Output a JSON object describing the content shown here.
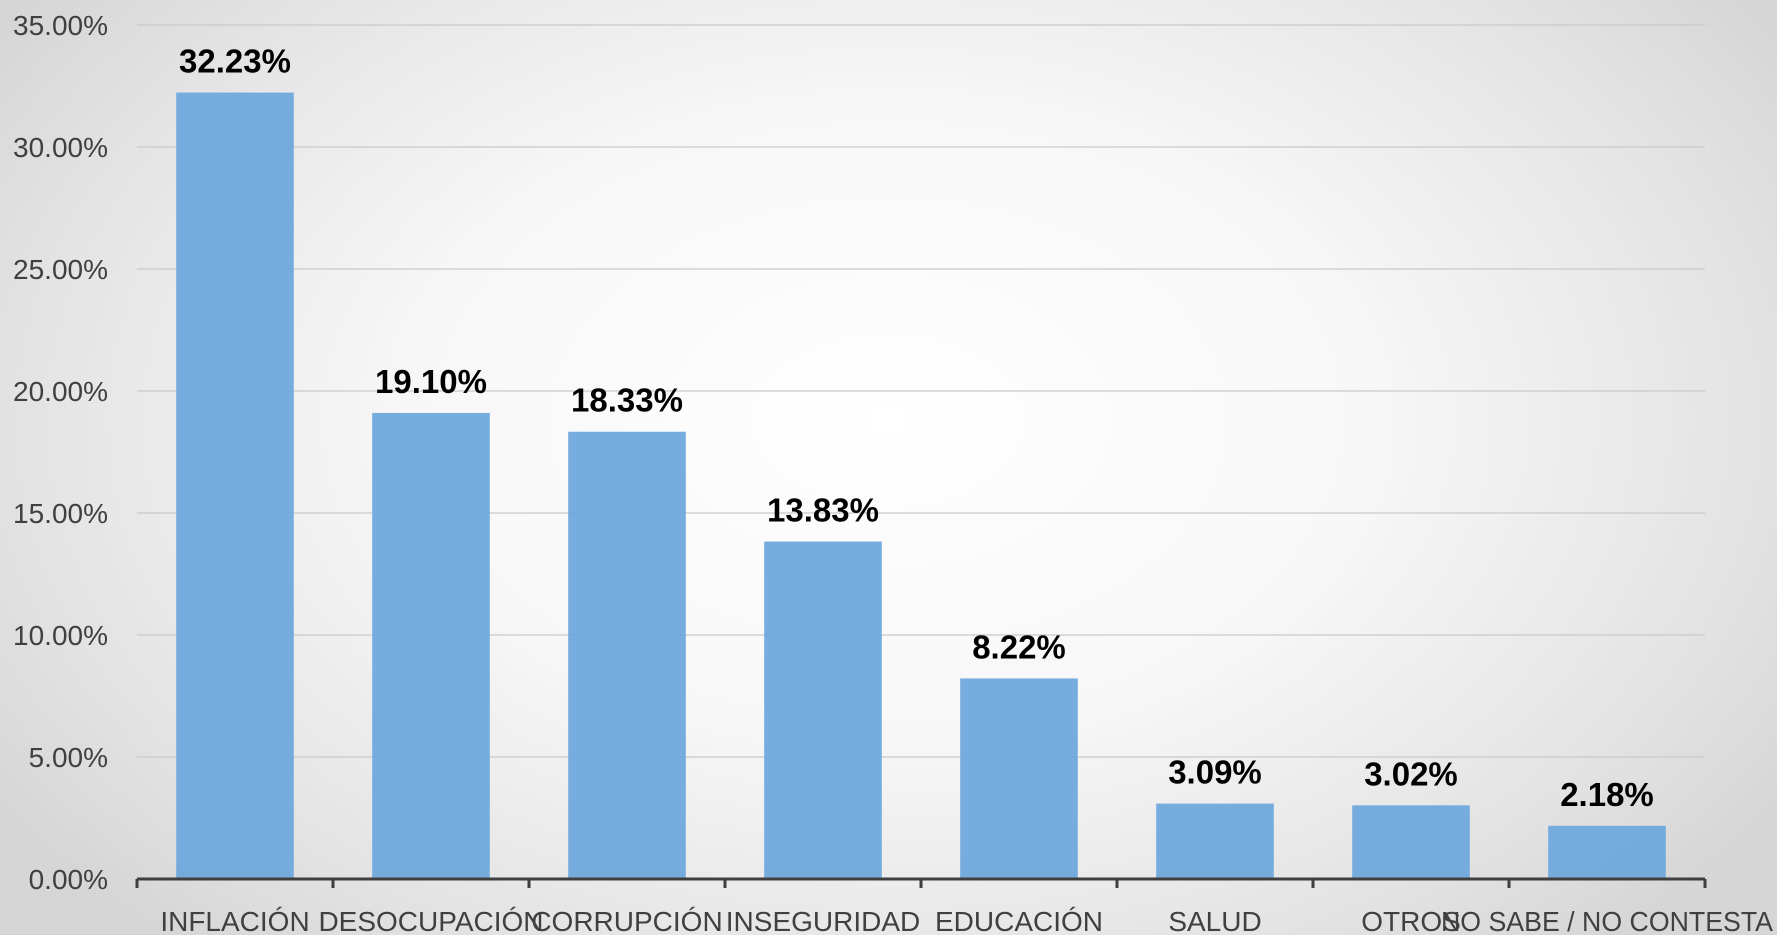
{
  "chart_data": {
    "type": "bar",
    "title": "",
    "xlabel": "",
    "ylabel": "",
    "categories": [
      "INFLACIÓN",
      "DESOCUPACIÓN",
      "CORRUPCIÓN",
      "INSEGURIDAD",
      "EDUCACIÓN",
      "SALUD",
      "OTROS",
      "NO SABE / NO CONTESTA"
    ],
    "values": [
      32.23,
      19.1,
      18.33,
      13.83,
      8.22,
      3.09,
      3.02,
      2.18
    ],
    "data_labels": [
      "32.23%",
      "19.10%",
      "18.33%",
      "13.83%",
      "8.22%",
      "3.09%",
      "3.02%",
      "2.18%"
    ],
    "ylim": [
      0,
      35
    ],
    "y_ticks": [
      0,
      5,
      10,
      15,
      20,
      25,
      30,
      35
    ],
    "y_tick_labels": [
      "0.00%",
      "5.00%",
      "10.00%",
      "15.00%",
      "20.00%",
      "25.00%",
      "30.00%",
      "35.00%"
    ],
    "grid": true,
    "legend": "none",
    "colors": {
      "bar": "#6fa8dc",
      "data_label": "#000000",
      "axis_text": "#404040"
    }
  }
}
